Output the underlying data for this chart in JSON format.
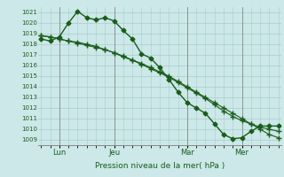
{
  "title": "Pression niveau de la mer( hPa )",
  "bg_color": "#cce8e8",
  "grid_color": "#aacccc",
  "line_color": "#1a5c1a",
  "ylim_min": 1008.5,
  "ylim_max": 1021.5,
  "yticks": [
    1009,
    1010,
    1011,
    1012,
    1013,
    1014,
    1015,
    1016,
    1017,
    1018,
    1019,
    1020,
    1021
  ],
  "xtick_labels": [
    "Lun",
    "Jeu",
    "Mar",
    "Mer"
  ],
  "xtick_positions": [
    2,
    8,
    16,
    22
  ],
  "n_points": 27,
  "series1_x": [
    0,
    1,
    2,
    3,
    4,
    5,
    6,
    7,
    8,
    9,
    10,
    11,
    12,
    13,
    14,
    15,
    16,
    17,
    18,
    19,
    20,
    21,
    22,
    23,
    24,
    25,
    26
  ],
  "series1_y": [
    1018.5,
    1018.3,
    1018.7,
    1020.0,
    1021.1,
    1020.5,
    1020.3,
    1020.5,
    1020.2,
    1019.3,
    1018.5,
    1017.1,
    1016.7,
    1015.8,
    1014.7,
    1013.5,
    1012.5,
    1012.0,
    1011.5,
    1010.5,
    1009.5,
    1009.1,
    1009.2,
    1009.8,
    1010.3,
    1010.3,
    1010.3
  ],
  "series2_x": [
    0,
    1,
    2,
    3,
    4,
    5,
    6,
    7,
    8,
    9,
    10,
    11,
    12,
    13,
    14,
    15,
    16,
    17,
    18,
    19,
    20,
    21,
    22,
    23,
    24,
    25,
    26
  ],
  "series2_y": [
    1018.8,
    1018.7,
    1018.5,
    1018.3,
    1018.2,
    1018.0,
    1017.8,
    1017.5,
    1017.2,
    1016.9,
    1016.5,
    1016.2,
    1015.8,
    1015.4,
    1015.0,
    1014.5,
    1014.0,
    1013.5,
    1013.0,
    1012.5,
    1012.0,
    1011.5,
    1011.0,
    1010.5,
    1010.0,
    1009.5,
    1009.2
  ],
  "series3_x": [
    0,
    1,
    2,
    3,
    4,
    5,
    6,
    7,
    8,
    9,
    10,
    11,
    12,
    13,
    14,
    15,
    16,
    17,
    18,
    19,
    20,
    21,
    22,
    23,
    24,
    25,
    26
  ],
  "series3_y": [
    1018.8,
    1018.7,
    1018.5,
    1018.3,
    1018.1,
    1017.9,
    1017.7,
    1017.5,
    1017.2,
    1016.8,
    1016.5,
    1016.1,
    1015.7,
    1015.3,
    1014.9,
    1014.4,
    1013.9,
    1013.4,
    1012.9,
    1012.3,
    1011.7,
    1011.2,
    1010.8,
    1010.5,
    1010.2,
    1010.0,
    1009.8
  ],
  "marker1": "D",
  "marker2": "+",
  "marker3": "+",
  "ms1": 2.5,
  "ms2": 4,
  "ms3": 4,
  "lw1": 1.0,
  "lw2": 0.8,
  "lw3": 0.8
}
